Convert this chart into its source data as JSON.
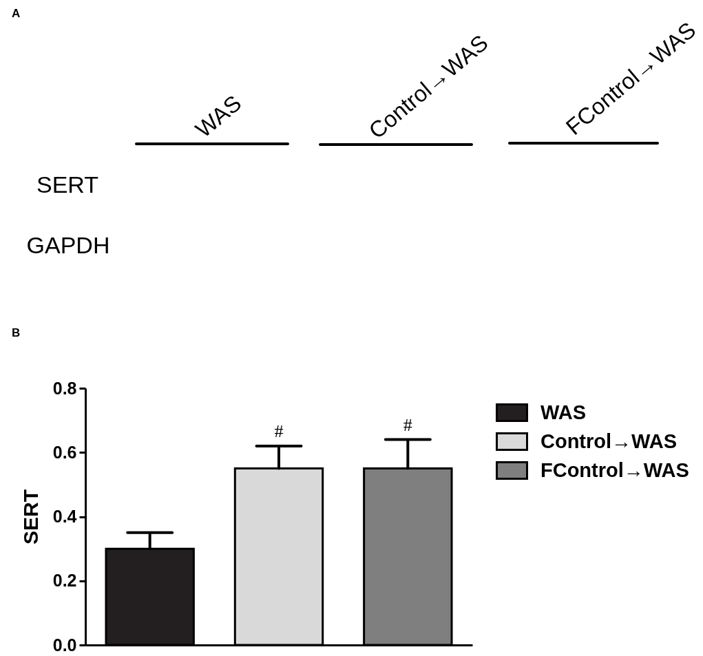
{
  "chart_data": [
    {
      "type": "other",
      "title": "A",
      "annotations": [
        "WAS",
        "Control→WAS",
        "FControl→WAS",
        "SERT",
        "GAPDH"
      ]
    },
    {
      "type": "bar",
      "title": "B",
      "ylabel": "SERT",
      "categories": [
        null,
        null,
        null
      ],
      "series": [
        {
          "name": "WAS",
          "color": "#231f20",
          "values": [
            0.3,
            null,
            null
          ],
          "errors": [
            [
              0.3,
              0.35
            ],
            null,
            null
          ]
        },
        {
          "name": "Control→WAS",
          "color": "#d9d9d9",
          "values": [
            null,
            0.55,
            null
          ],
          "errors": [
            null,
            [
              0.55,
              0.62
            ],
            null
          ],
          "value_labels": [
            null,
            "#",
            null
          ]
        },
        {
          "name": "FControl→WAS",
          "color": "#7f7f7f",
          "values": [
            null,
            null,
            0.55
          ],
          "errors": [
            null,
            null,
            [
              0.55,
              0.64
            ]
          ],
          "value_labels": [
            null,
            null,
            "#"
          ]
        }
      ],
      "ylim": [
        0,
        0.8
      ],
      "yticks": [
        {
          "value": 0,
          "label": "0.0"
        },
        0.2,
        0.4,
        0.6,
        0.8
      ],
      "legend": "top right"
    }
  ]
}
